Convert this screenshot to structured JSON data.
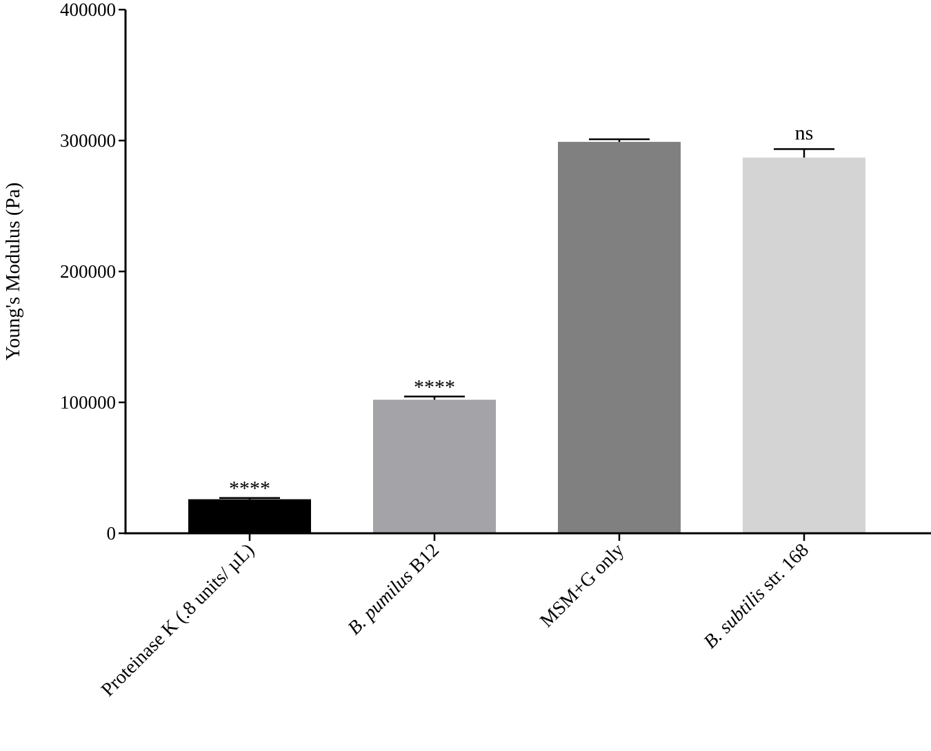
{
  "chart_data": {
    "type": "bar",
    "title": "",
    "xlabel": "",
    "ylabel": "Young's  Modulus  (Pa)",
    "ylim": [
      0,
      400000
    ],
    "yticks": [
      0,
      100000,
      200000,
      300000,
      400000
    ],
    "ytick_labels": [
      "0",
      "100000",
      "200000",
      "300000",
      "400000"
    ],
    "grid": false,
    "categories": [
      {
        "parts": [
          {
            "text": "Proteinase K (.8 units/ µL)",
            "italic": false
          }
        ]
      },
      {
        "parts": [
          {
            "text": "B. pumilus",
            "italic": true
          },
          {
            "text": "  B12",
            "italic": false
          }
        ]
      },
      {
        "parts": [
          {
            "text": "MSM+G only",
            "italic": false
          }
        ]
      },
      {
        "parts": [
          {
            "text": "B. subtilis",
            "italic": true
          },
          {
            "text": "  str. 168",
            "italic": false
          }
        ]
      }
    ],
    "values": [
      26000,
      102000,
      299000,
      287000
    ],
    "errors": [
      1000,
      2500,
      2000,
      6500
    ],
    "significance": [
      "****",
      "****",
      "",
      "ns"
    ],
    "colors": [
      "#000000",
      "#a3a3a8",
      "#808080",
      "#d4d4d4"
    ]
  }
}
